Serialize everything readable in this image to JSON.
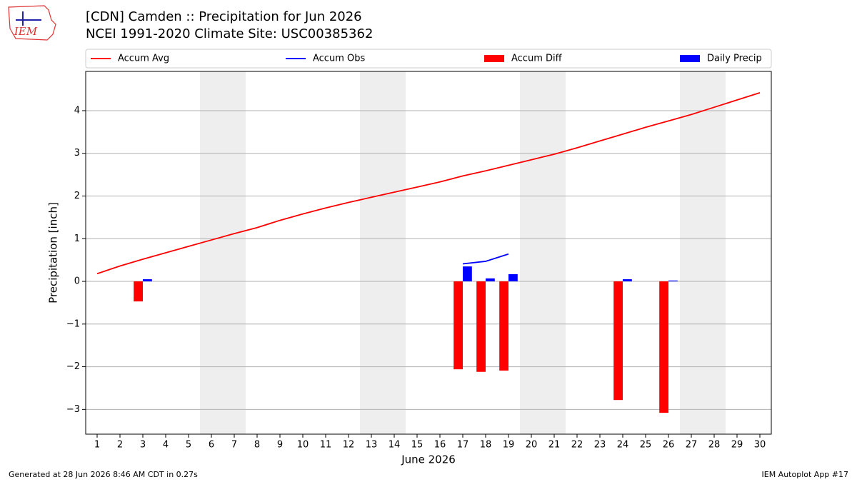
{
  "logo_text": "IEM",
  "footer_left": "Generated at 28 Jun 2026 8:46 AM CDT in 0.27s",
  "footer_right": "IEM Autoplot App #17",
  "chart_data": {
    "type": "bar",
    "title": "[CDN] Camden :: Precipitation for Jun 2026",
    "subtitle": "NCEI 1991-2020 Climate Site: USC00385362",
    "x_label": "June 2026",
    "y_label": "Precipitation [inch]",
    "x": [
      1,
      2,
      3,
      4,
      5,
      6,
      7,
      8,
      9,
      10,
      11,
      12,
      13,
      14,
      15,
      16,
      17,
      18,
      19,
      20,
      21,
      22,
      23,
      24,
      25,
      26,
      27,
      28,
      29,
      30
    ],
    "xlim": [
      0.5,
      30.5
    ],
    "xticks": [
      1,
      2,
      3,
      4,
      5,
      6,
      7,
      8,
      9,
      10,
      11,
      12,
      13,
      14,
      15,
      16,
      17,
      18,
      19,
      20,
      21,
      22,
      23,
      24,
      25,
      26,
      27,
      28,
      29,
      30
    ],
    "ylim": [
      -3.58,
      4.92
    ],
    "yticks": [
      {
        "value": -3,
        "label": "−3"
      },
      {
        "value": -2,
        "label": "−2"
      },
      {
        "value": -1,
        "label": "−1"
      },
      0,
      1,
      2,
      3,
      4
    ],
    "grid": true,
    "shaded_ranges": [
      [
        5.5,
        7.5
      ],
      [
        12.5,
        14.5
      ],
      [
        19.5,
        21.5
      ],
      [
        26.5,
        28.5
      ]
    ],
    "shade_color": "#eeeeee",
    "series": [
      {
        "name": "Accum Avg",
        "type": "line",
        "color": "#ff0000",
        "values": [
          0.18,
          0.36,
          0.52,
          0.67,
          0.82,
          0.97,
          1.12,
          1.26,
          1.43,
          1.58,
          1.72,
          1.85,
          1.97,
          2.09,
          2.21,
          2.33,
          2.47,
          2.59,
          2.72,
          2.85,
          2.98,
          3.13,
          3.29,
          3.45,
          3.61,
          3.76,
          3.91,
          4.08,
          4.25,
          4.42
        ]
      },
      {
        "name": "Accum Obs",
        "type": "line",
        "color": "#0000ff",
        "values": [
          null,
          null,
          null,
          null,
          null,
          null,
          null,
          null,
          null,
          null,
          null,
          null,
          null,
          null,
          null,
          null,
          0.41,
          0.47,
          0.64,
          null,
          null,
          null,
          null,
          null,
          null,
          null,
          null,
          null,
          null,
          null
        ]
      },
      {
        "name": "Accum Diff",
        "type": "bar",
        "color": "#ff0000",
        "values": [
          null,
          null,
          -0.47,
          null,
          null,
          null,
          null,
          null,
          null,
          null,
          null,
          null,
          null,
          null,
          null,
          null,
          -2.06,
          -2.12,
          -2.09,
          null,
          null,
          null,
          null,
          -2.78,
          null,
          -3.08,
          null,
          null,
          null,
          null
        ]
      },
      {
        "name": "Daily Precip",
        "type": "bar",
        "color": "#0000ff",
        "values": [
          null,
          null,
          0.05,
          null,
          null,
          null,
          null,
          null,
          null,
          null,
          null,
          null,
          null,
          null,
          null,
          null,
          0.35,
          0.07,
          0.17,
          null,
          null,
          null,
          null,
          0.05,
          null,
          0.02,
          null,
          null,
          null,
          null
        ]
      }
    ]
  }
}
